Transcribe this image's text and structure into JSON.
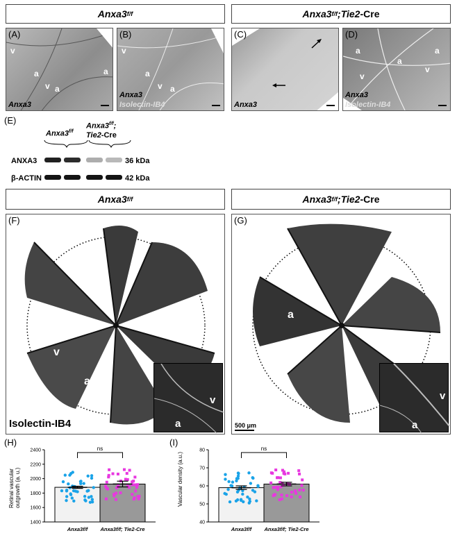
{
  "headers": {
    "top_left": {
      "gene": "Anxa3",
      "sup": "f/f"
    },
    "top_right": {
      "gene": "Anxa3",
      "sup": "f/f",
      "suffix_sep": ";",
      "cre": "Tie2",
      "cre_suffix": "-Cre"
    },
    "mid_left": {
      "gene": "Anxa3",
      "sup": "f/f"
    },
    "mid_right": {
      "gene": "Anxa3",
      "sup": "f/f",
      "suffix_sep": ";",
      "cre": "Tie2",
      "cre_suffix": "-Cre"
    }
  },
  "panels": {
    "A": {
      "label": "(A)",
      "stain1": "Anxa3",
      "marks": [
        "v",
        "a",
        "v",
        "a",
        "a"
      ]
    },
    "B": {
      "label": "(B)",
      "stain1": "Anxa3",
      "stain2": "Isolectin-IB4",
      "marks": [
        "v",
        "a",
        "v",
        "a"
      ]
    },
    "C": {
      "label": "(C)",
      "stain1": "Anxa3"
    },
    "D": {
      "label": "(D)",
      "stain1": "Anxa3",
      "stain2": "Isolectin-IB4",
      "marks": [
        "a",
        "a",
        "a",
        "v",
        "v"
      ]
    },
    "E": {
      "label": "(E)"
    },
    "F": {
      "label": "(F)",
      "stain": "Isolectin-IB4",
      "marks": [
        "v",
        "a",
        "v",
        "a"
      ]
    },
    "G": {
      "label": "(G)",
      "scale": "500 μm",
      "marks": [
        "a",
        "v",
        "v",
        "a"
      ]
    },
    "H": {
      "label": "(H)"
    },
    "I": {
      "label": "(I)"
    }
  },
  "western_blot": {
    "groups": [
      {
        "gene": "Anxa3",
        "sup": "f/f"
      },
      {
        "gene": "Anxa3",
        "sup": "f/f",
        "suffix": ";",
        "line2": "Tie2",
        "line2_suffix": "-Cre"
      }
    ],
    "rows": [
      {
        "protein": "ANXA3",
        "size": "36 kDa",
        "intensities": [
          0.95,
          0.9,
          0.35,
          0.3
        ]
      },
      {
        "protein": "β-ACTIN",
        "size": "42 kDa",
        "intensities": [
          1,
          1,
          1,
          1
        ]
      }
    ]
  },
  "chart_data": [
    {
      "type": "bar",
      "panel": "H",
      "ylabel_line1": "Retinal vascular",
      "ylabel_line2": "outgrowth (a. u.)",
      "ylim": [
        1400,
        2400
      ],
      "yticks": [
        1400,
        1600,
        1800,
        2000,
        2200,
        2400
      ],
      "categories": [
        "Anxa3f/f",
        "Anxa3f/f; Tie2-Cre"
      ],
      "values": [
        1880,
        1925
      ],
      "sem": [
        15,
        40
      ],
      "colors": [
        "#1aa3e8",
        "#e838e0"
      ],
      "significance": "ns"
    },
    {
      "type": "bar",
      "panel": "I",
      "ylabel": "Vascular density (a.u.)",
      "ylim": [
        40,
        80
      ],
      "yticks": [
        40,
        50,
        60,
        70,
        80
      ],
      "categories": [
        "Anxa3f/f",
        "Anxa3f/f; Tie2-Cre"
      ],
      "values": [
        59,
        61
      ],
      "sem": [
        1,
        1
      ],
      "colors": [
        "#1aa3e8",
        "#e838e0"
      ],
      "significance": "ns"
    }
  ]
}
